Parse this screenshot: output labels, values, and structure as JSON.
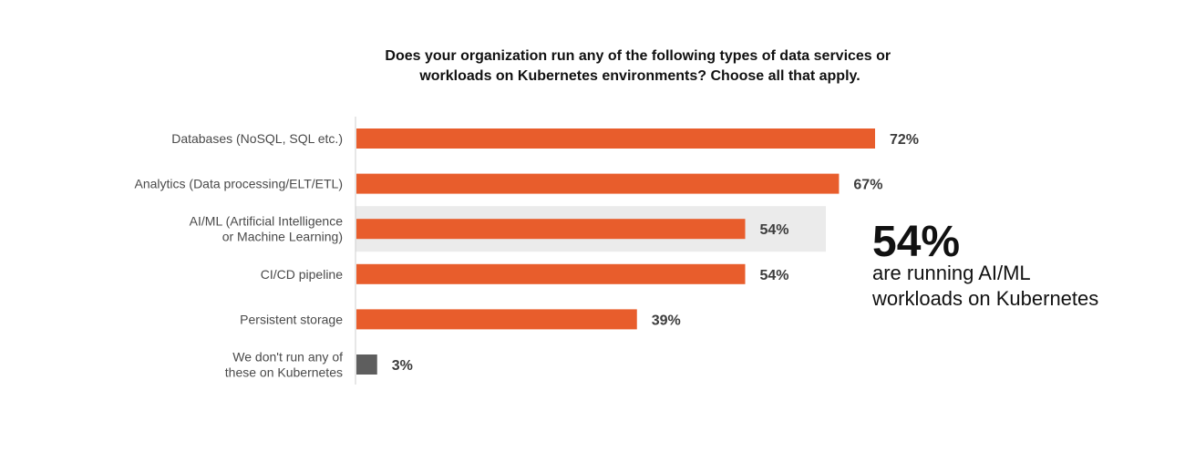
{
  "chart_data": {
    "type": "bar",
    "orientation": "horizontal",
    "title": "Does your organization run any of the following types of data services or workloads on Kubernetes environments? Choose all that apply.",
    "title_lines": [
      "Does your organization run any of the following types of data services or",
      "workloads on Kubernetes environments? Choose all that apply."
    ],
    "categories": [
      [
        "Databases (NoSQL, SQL etc.)"
      ],
      [
        "Analytics (Data processing/ELT/ETL)"
      ],
      [
        "AI/ML (Artificial Intelligence",
        "or Machine Learning)"
      ],
      [
        "CI/CD pipeline"
      ],
      [
        "Persistent storage"
      ],
      [
        "We don't run any of",
        "these on Kubernetes"
      ]
    ],
    "values": [
      72,
      67,
      54,
      54,
      39,
      3
    ],
    "value_labels": [
      "72%",
      "67%",
      "54%",
      "54%",
      "39%",
      "3%"
    ],
    "bar_colors": [
      "#E85D2C",
      "#E85D2C",
      "#E85D2C",
      "#E85D2C",
      "#E85D2C",
      "#5E5E5E"
    ],
    "highlight_index": 2,
    "highlight_color": "#EBEBEB",
    "xlim": [
      0,
      72
    ],
    "grid": false,
    "legend": "none",
    "axis_line_color": "#CFCFCF",
    "callout": {
      "value": "54%",
      "lines": [
        "are running AI/ML",
        "workloads on Kubernetes"
      ]
    }
  }
}
